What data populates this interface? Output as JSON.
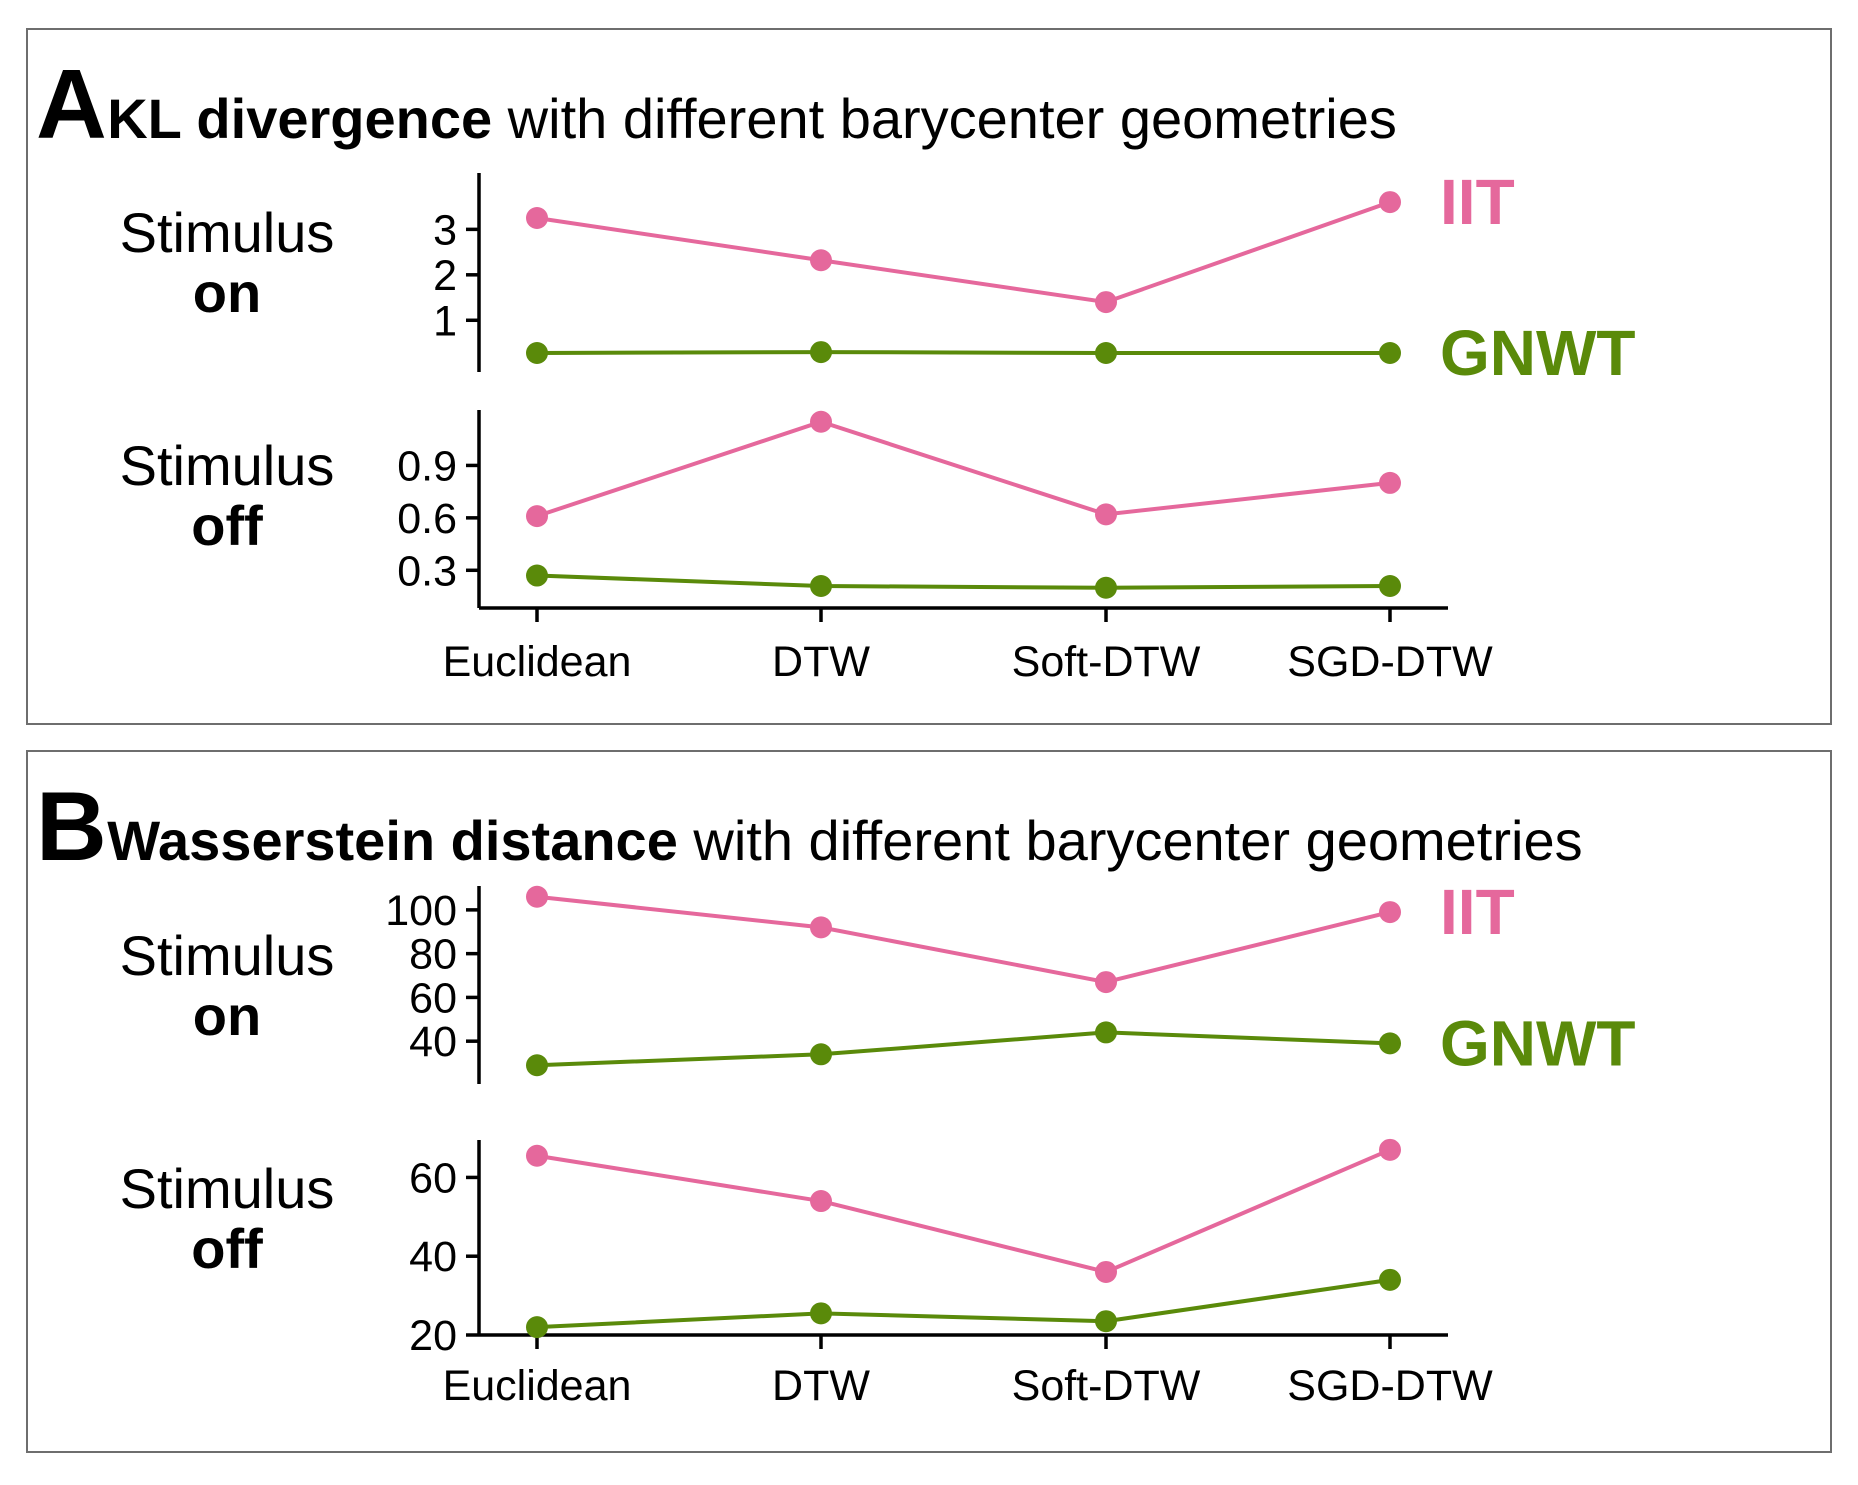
{
  "colors": {
    "IIT": "#e5689c",
    "GNWT": "#5a8a0a",
    "axis": "#000000",
    "border": "#6e6e6e"
  },
  "panels": [
    {
      "letter": "A",
      "title_bold": "KL divergence",
      "title_rest": " with different barycenter geometries"
    },
    {
      "letter": "B",
      "title_bold": "Wasserstein distance",
      "title_rest": " with different barycenter geometries"
    }
  ],
  "row_labels": {
    "line1": "Stimulus",
    "on": "on",
    "off": "off"
  },
  "chart_data": [
    {
      "type": "line",
      "panel": "A",
      "row": "Stimulus on",
      "categories": [
        "Euclidean",
        "DTW",
        "Soft-DTW",
        "SGD-DTW"
      ],
      "series": [
        {
          "name": "IIT",
          "values": [
            3.25,
            2.32,
            1.4,
            3.6
          ]
        },
        {
          "name": "GNWT",
          "values": [
            0.28,
            0.3,
            0.28,
            0.28
          ]
        }
      ],
      "yticks": [
        1,
        2,
        3
      ],
      "ylim": [
        -0.05,
        3.8
      ]
    },
    {
      "type": "line",
      "panel": "A",
      "row": "Stimulus off",
      "categories": [
        "Euclidean",
        "DTW",
        "Soft-DTW",
        "SGD-DTW"
      ],
      "series": [
        {
          "name": "IIT",
          "values": [
            0.61,
            1.15,
            0.62,
            0.8
          ]
        },
        {
          "name": "GNWT",
          "values": [
            0.27,
            0.21,
            0.2,
            0.21
          ]
        }
      ],
      "yticks": [
        0.3,
        0.6,
        0.9
      ],
      "ytick_labels": [
        "0.3",
        "0.6",
        "0.9"
      ],
      "ylim": [
        0.13,
        1.2
      ]
    },
    {
      "type": "line",
      "panel": "B",
      "row": "Stimulus on",
      "categories": [
        "Euclidean",
        "DTW",
        "Soft-DTW",
        "SGD-DTW"
      ],
      "series": [
        {
          "name": "IIT",
          "values": [
            106,
            92,
            67,
            99
          ]
        },
        {
          "name": "GNWT",
          "values": [
            29,
            34,
            44,
            39
          ]
        }
      ],
      "yticks": [
        40,
        60,
        80,
        100
      ],
      "ylim": [
        25,
        110
      ]
    },
    {
      "type": "line",
      "panel": "B",
      "row": "Stimulus off",
      "categories": [
        "Euclidean",
        "DTW",
        "Soft-DTW",
        "SGD-DTW"
      ],
      "series": [
        {
          "name": "IIT",
          "values": [
            65.5,
            54,
            36,
            67
          ]
        },
        {
          "name": "GNWT",
          "values": [
            22,
            25.5,
            23.5,
            34
          ]
        }
      ],
      "yticks": [
        20,
        40,
        60
      ],
      "ylim": [
        20,
        69.5
      ]
    }
  ]
}
